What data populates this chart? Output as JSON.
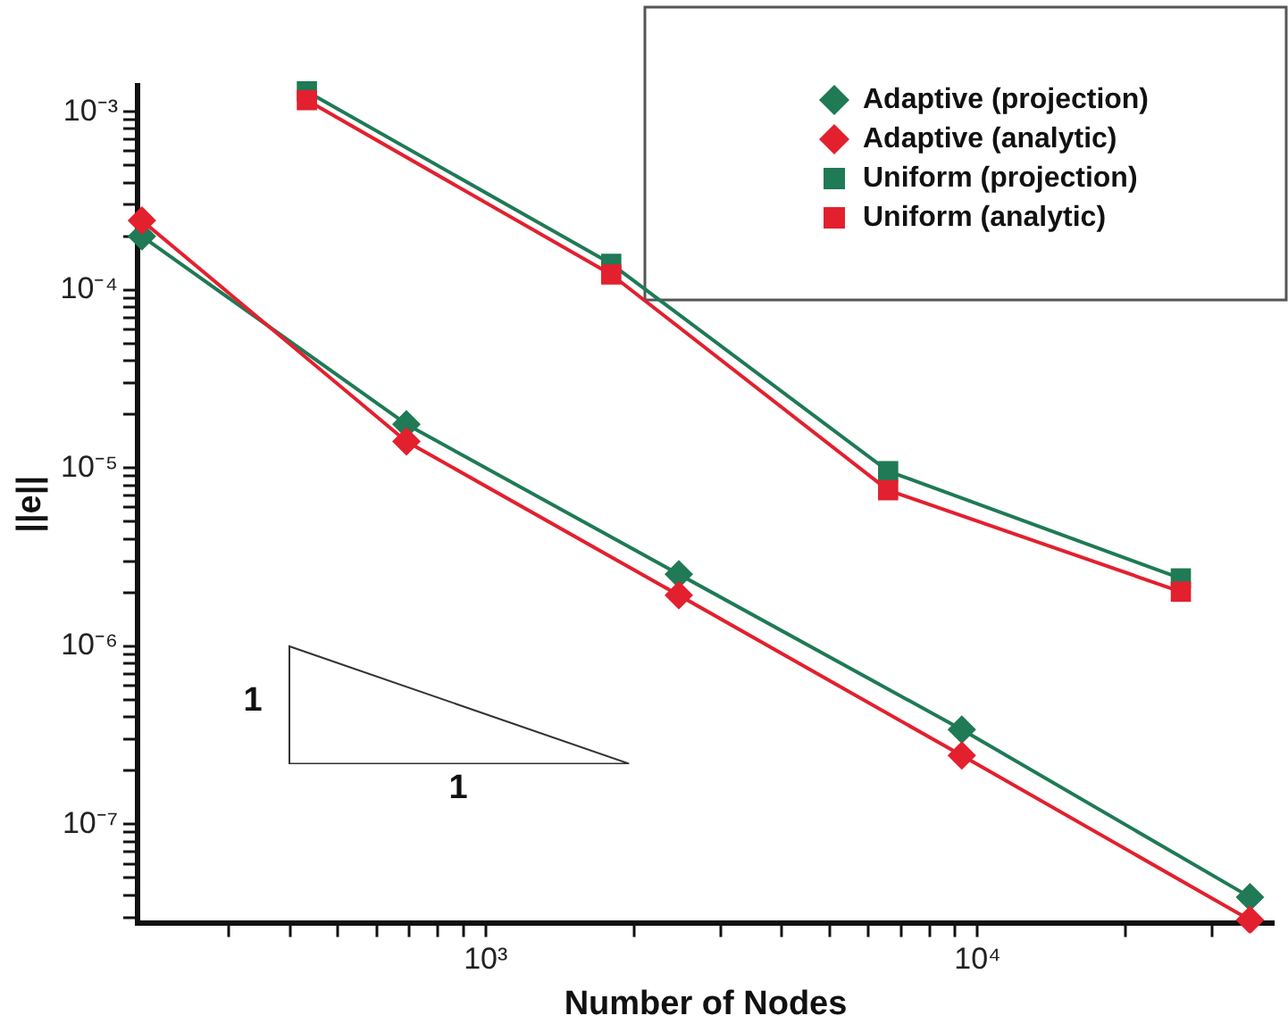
{
  "chart_data": {
    "type": "line",
    "xlabel": "Number of Nodes",
    "ylabel": "||e||",
    "log": "xy",
    "grid": false,
    "legend": "top right",
    "xlim": [
      196,
      40000
    ],
    "ylim": [
      2.8e-08,
      0.0014
    ],
    "xticks": [
      {
        "value": 300,
        "label": null
      },
      {
        "value": 400,
        "label": null
      },
      {
        "value": 500,
        "label": null
      },
      {
        "value": 600,
        "label": null
      },
      {
        "value": 700,
        "label": null
      },
      {
        "value": 800,
        "label": null
      },
      {
        "value": 900,
        "label": null
      },
      {
        "value": 1000,
        "label": "10³"
      },
      {
        "value": 2000,
        "label": null
      },
      {
        "value": 3000,
        "label": null
      },
      {
        "value": 4000,
        "label": null
      },
      {
        "value": 5000,
        "label": null
      },
      {
        "value": 6000,
        "label": null
      },
      {
        "value": 7000,
        "label": null
      },
      {
        "value": 8000,
        "label": null
      },
      {
        "value": 9000,
        "label": null
      },
      {
        "value": 10000,
        "label": "10⁴"
      },
      {
        "value": 20000,
        "label": null
      },
      {
        "value": 30000,
        "label": null
      }
    ],
    "yticks": [
      {
        "value": 3e-08,
        "label": null
      },
      {
        "value": 4e-08,
        "label": null
      },
      {
        "value": 5e-08,
        "label": null
      },
      {
        "value": 6e-08,
        "label": null
      },
      {
        "value": 7e-08,
        "label": null
      },
      {
        "value": 8e-08,
        "label": null
      },
      {
        "value": 9e-08,
        "label": null
      },
      {
        "value": 1e-07,
        "label": "10⁻⁷"
      },
      {
        "value": 2e-07,
        "label": null
      },
      {
        "value": 3e-07,
        "label": null
      },
      {
        "value": 4e-07,
        "label": null
      },
      {
        "value": 5e-07,
        "label": null
      },
      {
        "value": 6e-07,
        "label": null
      },
      {
        "value": 7e-07,
        "label": null
      },
      {
        "value": 8e-07,
        "label": null
      },
      {
        "value": 9e-07,
        "label": null
      },
      {
        "value": 1e-06,
        "label": "10⁻⁶"
      },
      {
        "value": 2e-06,
        "label": null
      },
      {
        "value": 3e-06,
        "label": null
      },
      {
        "value": 4e-06,
        "label": null
      },
      {
        "value": 5e-06,
        "label": null
      },
      {
        "value": 6e-06,
        "label": null
      },
      {
        "value": 7e-06,
        "label": null
      },
      {
        "value": 8e-06,
        "label": null
      },
      {
        "value": 9e-06,
        "label": null
      },
      {
        "value": 1e-05,
        "label": "10⁻⁵"
      },
      {
        "value": 2e-05,
        "label": null
      },
      {
        "value": 3e-05,
        "label": null
      },
      {
        "value": 4e-05,
        "label": null
      },
      {
        "value": 5e-05,
        "label": null
      },
      {
        "value": 6e-05,
        "label": null
      },
      {
        "value": 7e-05,
        "label": null
      },
      {
        "value": 8e-05,
        "label": null
      },
      {
        "value": 9e-05,
        "label": null
      },
      {
        "value": 0.0001,
        "label": "10⁻⁴"
      },
      {
        "value": 0.0002,
        "label": null
      },
      {
        "value": 0.0003,
        "label": null
      },
      {
        "value": 0.0004,
        "label": null
      },
      {
        "value": 0.0005,
        "label": null
      },
      {
        "value": 0.0006,
        "label": null
      },
      {
        "value": 0.0007,
        "label": null
      },
      {
        "value": 0.0008,
        "label": null
      },
      {
        "value": 0.0009,
        "label": null
      },
      {
        "value": 0.001,
        "label": "10⁻³"
      }
    ],
    "series": [
      {
        "name": "Adaptive (projection)",
        "color": "#1f7a55",
        "marker": "diamond",
        "x": [
          200,
          690,
          2470,
          9290,
          35800
        ],
        "values": [
          0.0002,
          1.76e-05,
          2.53e-06,
          3.4e-07,
          3.9e-08
        ]
      },
      {
        "name": "Adaptive (analytic)",
        "color": "#e3202e",
        "marker": "diamond",
        "x": [
          200,
          690,
          2470,
          9290,
          35800
        ],
        "values": [
          0.000245,
          1.41e-05,
          1.93e-06,
          2.43e-07,
          2.9e-08
        ]
      },
      {
        "name": "Uniform (projection)",
        "color": "#1f7a55",
        "marker": "square",
        "x": [
          433,
          1800,
          6580,
          25900
        ],
        "values": [
          0.0013,
          0.00014,
          9.6e-06,
          2.4e-06
        ]
      },
      {
        "name": "Uniform (analytic)",
        "color": "#e3202e",
        "marker": "square",
        "x": [
          433,
          1800,
          6580,
          25900
        ],
        "values": [
          0.00116,
          0.000122,
          7.5e-06,
          2.02e-06
        ]
      }
    ],
    "annotations": [
      "1",
      "1"
    ]
  }
}
